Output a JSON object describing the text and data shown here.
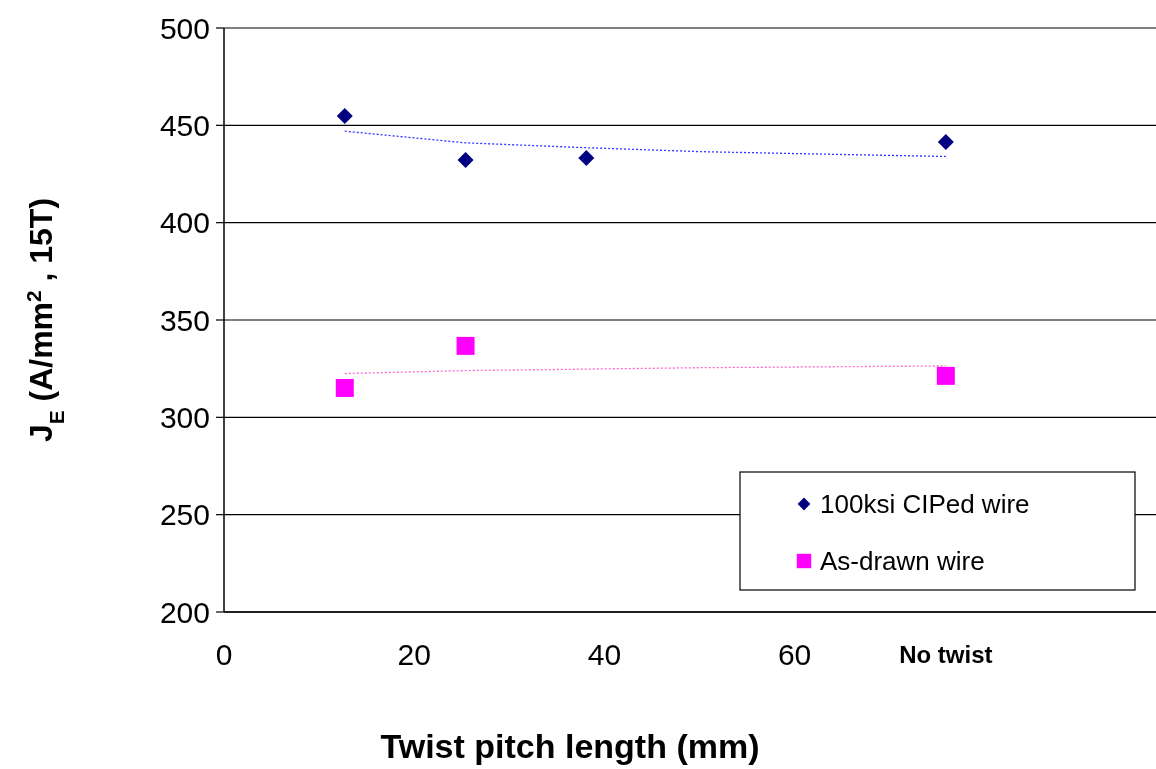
{
  "chart_data": {
    "type": "scatter",
    "xlabel": "Twist pitch length (mm)",
    "ylabel": "J$_{E}$ (A/mm$^{2}$ , 15T)",
    "xlim": [
      0,
      98
    ],
    "xticks": [
      0,
      20,
      40,
      60,
      {
        "value": 75.9,
        "label": "No twist"
      }
    ],
    "ylim": [
      200,
      500
    ],
    "yticks": [
      200,
      250,
      300,
      350,
      400,
      450,
      500
    ],
    "grid": "y",
    "legend": "bottom right",
    "series": [
      {
        "name": "100ksi CIPed wire",
        "marker": "diamond",
        "color": "#000080",
        "x": [
          12.7,
          25.4,
          38.1,
          75.9
        ],
        "values": [
          454.8,
          432.2,
          433.2,
          441.4
        ]
      },
      {
        "name": "As-drawn wire",
        "marker": "square",
        "color": "#ff00ff",
        "x": [
          12.7,
          25.4,
          75.9
        ],
        "values": [
          315.1,
          336.7,
          321.3
        ]
      },
      {
        "type": "line",
        "line_style": "dotted",
        "color": "#3333ff",
        "x": [
          12.7,
          25.4,
          38.1,
          50,
          60,
          75.9
        ],
        "values": [
          447,
          441,
          438.5,
          436.5,
          435.5,
          434
        ]
      },
      {
        "type": "line",
        "line_style": "dotted",
        "color": "#ff66cc",
        "x": [
          12.7,
          25.4,
          50,
          75.9
        ],
        "values": [
          322.5,
          324,
          325.5,
          326.4
        ]
      }
    ]
  }
}
